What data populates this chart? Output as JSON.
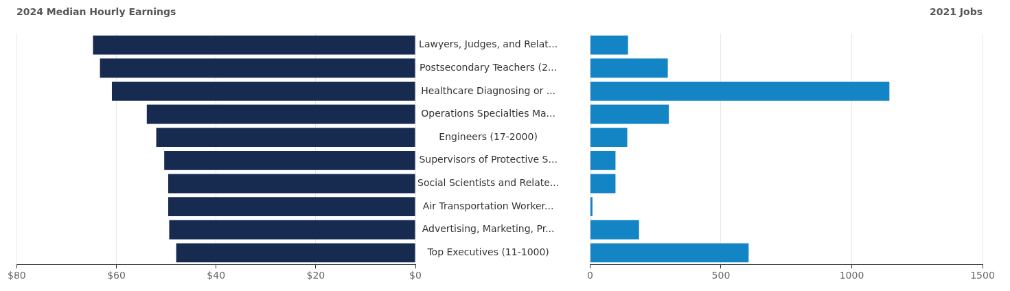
{
  "chart_data": [
    {
      "type": "bar",
      "orientation": "horizontal",
      "title": "2024 Median Hourly Earnings",
      "categories": [
        "Lawyers, Judges, and Relat...",
        "Postsecondary Teachers (2...",
        "Healthcare Diagnosing or ...",
        "Operations Specialties Ma...",
        "Engineers (17-2000)",
        "Supervisors of Protective S...",
        "Social Scientists and Relate...",
        "Air Transportation Worker...",
        "Advertising, Marketing, Pr...",
        "Top Executives (11-1000)"
      ],
      "values": [
        64.7,
        63.3,
        60.9,
        53.9,
        52.0,
        50.4,
        49.6,
        49.6,
        49.4,
        48.0
      ],
      "color": "#172a50",
      "xlim": [
        80,
        0
      ],
      "xticks": [
        {
          "value": 80,
          "label": "$80"
        },
        {
          "value": 60,
          "label": "$60"
        },
        {
          "value": 40,
          "label": "$40"
        },
        {
          "value": 20,
          "label": "$20"
        },
        {
          "value": 0,
          "label": "$0"
        }
      ],
      "grid": "x",
      "legend": false
    },
    {
      "type": "bar",
      "orientation": "horizontal",
      "title": "2021 Jobs",
      "categories": [
        null,
        null,
        null,
        null,
        null,
        null,
        null,
        null,
        null,
        null
      ],
      "values": [
        145,
        297,
        1144,
        301,
        142,
        97,
        97,
        9,
        187,
        606
      ],
      "color": "#1384c4",
      "xlim": [
        0,
        1500
      ],
      "xticks": [
        0,
        500,
        1000,
        1500
      ],
      "grid": "x",
      "legend": false,
      "tick_labels": "x"
    }
  ]
}
